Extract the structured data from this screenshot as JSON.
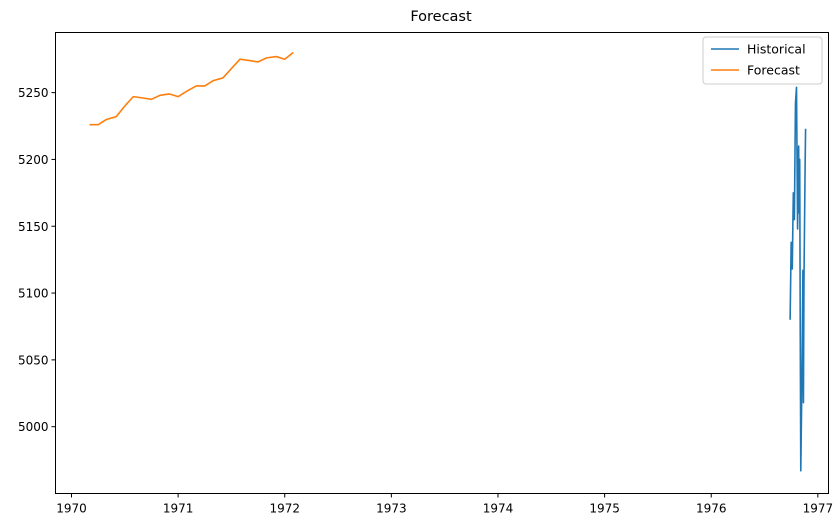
{
  "chart_data": {
    "type": "line",
    "title": "Forecast",
    "xlabel": "",
    "ylabel": "",
    "xlim": [
      1969.85,
      1977.1
    ],
    "ylim": [
      4950,
      5295
    ],
    "x_ticks": [
      1970,
      1971,
      1972,
      1973,
      1974,
      1975,
      1976,
      1977
    ],
    "x_tick_labels": [
      "1970",
      "1971",
      "1972",
      "1973",
      "1974",
      "1975",
      "1976",
      "1977"
    ],
    "y_ticks": [
      5000,
      5050,
      5100,
      5150,
      5200,
      5250
    ],
    "y_tick_labels": [
      "5000",
      "5050",
      "5100",
      "5150",
      "5200",
      "5250"
    ],
    "grid": false,
    "legend_position": "top-right",
    "series": [
      {
        "name": "Historical",
        "color": "#1f77b4",
        "points": [
          [
            1976.74,
            5080
          ],
          [
            1976.75,
            5138
          ],
          [
            1976.76,
            5118
          ],
          [
            1976.77,
            5175
          ],
          [
            1976.78,
            5155
          ],
          [
            1976.79,
            5242
          ],
          [
            1976.8,
            5254
          ],
          [
            1976.81,
            5148
          ],
          [
            1976.82,
            5210
          ],
          [
            1976.825,
            5160
          ],
          [
            1976.83,
            5200
          ],
          [
            1976.835,
            5070
          ],
          [
            1976.84,
            4967
          ],
          [
            1976.85,
            5030
          ],
          [
            1976.86,
            5117
          ],
          [
            1976.865,
            5018
          ],
          [
            1976.87,
            5110
          ],
          [
            1976.88,
            5190
          ],
          [
            1976.885,
            5223
          ]
        ]
      },
      {
        "name": "Forecast",
        "color": "#ff7f0e",
        "points": [
          [
            1970.17,
            5226
          ],
          [
            1970.25,
            5226
          ],
          [
            1970.33,
            5230
          ],
          [
            1970.42,
            5232
          ],
          [
            1970.5,
            5240
          ],
          [
            1970.58,
            5247
          ],
          [
            1970.67,
            5246
          ],
          [
            1970.75,
            5245
          ],
          [
            1970.83,
            5248
          ],
          [
            1970.92,
            5249
          ],
          [
            1971.0,
            5247
          ],
          [
            1971.08,
            5251
          ],
          [
            1971.17,
            5255
          ],
          [
            1971.25,
            5255
          ],
          [
            1971.33,
            5259
          ],
          [
            1971.42,
            5261
          ],
          [
            1971.5,
            5268
          ],
          [
            1971.58,
            5275
          ],
          [
            1971.67,
            5274
          ],
          [
            1971.75,
            5273
          ],
          [
            1971.83,
            5276
          ],
          [
            1971.92,
            5277
          ],
          [
            1972.0,
            5275
          ],
          [
            1972.08,
            5280
          ]
        ]
      }
    ]
  }
}
